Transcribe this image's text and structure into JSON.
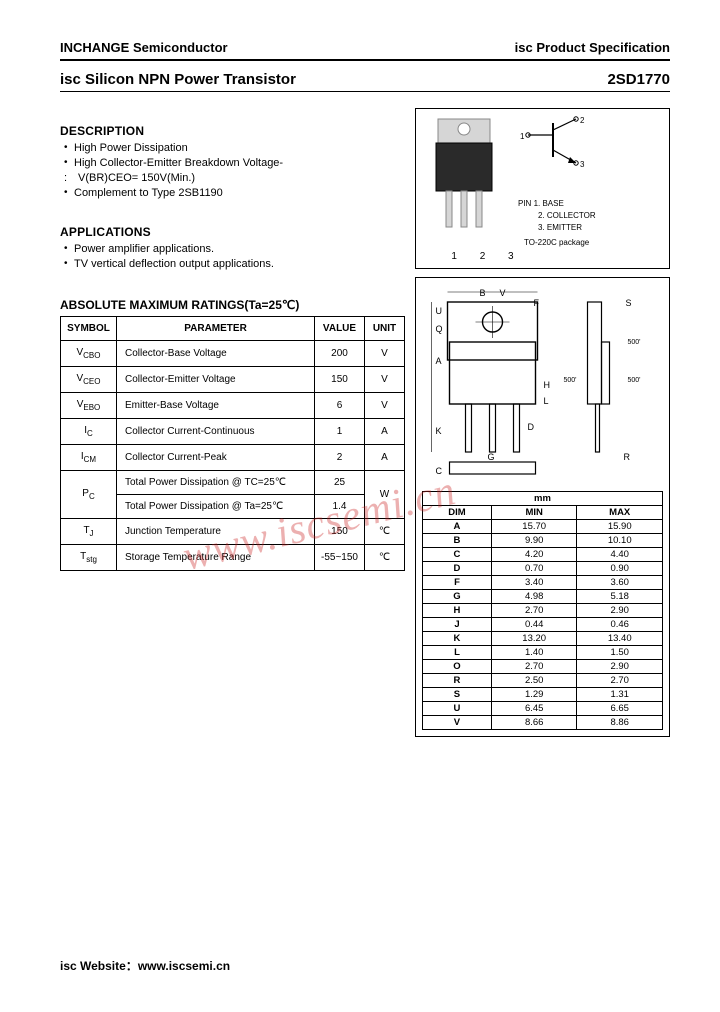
{
  "header": {
    "company": "INCHANGE Semiconductor",
    "spec": "isc Product Specification",
    "product_title": "isc Silicon NPN Power Transistor",
    "part_number": "2SD1770"
  },
  "description": {
    "heading": "DESCRIPTION",
    "items": [
      "High Power Dissipation",
      "High Collector-Emitter Breakdown Voltage-"
    ],
    "sub_item": "V(BR)CEO= 150V(Min.)",
    "complement": "Complement to Type 2SB1190"
  },
  "applications": {
    "heading": "APPLICATIONS",
    "items": [
      "Power amplifier applications.",
      "TV vertical deflection output applications."
    ]
  },
  "ratings": {
    "heading": "ABSOLUTE MAXIMUM RATINGS(Ta=25℃)",
    "columns": [
      "SYMBOL",
      "PARAMETER",
      "VALUE",
      "UNIT"
    ],
    "rows": [
      {
        "sym": "V",
        "sub": "CBO",
        "param": "Collector-Base Voltage",
        "value": "200",
        "unit": "V"
      },
      {
        "sym": "V",
        "sub": "CEO",
        "param": "Collector-Emitter Voltage",
        "value": "150",
        "unit": "V"
      },
      {
        "sym": "V",
        "sub": "EBO",
        "param": "Emitter-Base Voltage",
        "value": "6",
        "unit": "V"
      },
      {
        "sym": "I",
        "sub": "C",
        "param": "Collector Current-Continuous",
        "value": "1",
        "unit": "A"
      },
      {
        "sym": "I",
        "sub": "CM",
        "param": "Collector Current-Peak",
        "value": "2",
        "unit": "A"
      }
    ],
    "pd_rows": [
      {
        "param": "Total Power Dissipation\n@ TC=25℃",
        "value": "25"
      },
      {
        "param": "Total Power Dissipation\n@ Ta=25℃",
        "value": "1.4"
      }
    ],
    "pd_sym": "PC",
    "pd_unit": "W",
    "tj": {
      "sym": "TJ",
      "param": "Junction Temperature",
      "value": "150",
      "unit": "℃"
    },
    "tstg": {
      "sym": "Tstg",
      "param": "Storage Temperature Range",
      "value": "-55~150",
      "unit": "℃"
    }
  },
  "package": {
    "pin_head": "PIN",
    "pins": [
      "1. BASE",
      "2. COLLECTOR",
      "3. EMITTER"
    ],
    "pkg": "TO-220C package",
    "pin_row": "1  2  3"
  },
  "dimensions": {
    "unit_label": "mm",
    "columns": [
      "DIM",
      "MIN",
      "MAX"
    ],
    "rows": [
      [
        "A",
        "15.70",
        "15.90"
      ],
      [
        "B",
        "9.90",
        "10.10"
      ],
      [
        "C",
        "4.20",
        "4.40"
      ],
      [
        "D",
        "0.70",
        "0.90"
      ],
      [
        "F",
        "3.40",
        "3.60"
      ],
      [
        "G",
        "4.98",
        "5.18"
      ],
      [
        "H",
        "2.70",
        "2.90"
      ],
      [
        "J",
        "0.44",
        "0.46"
      ],
      [
        "K",
        "13.20",
        "13.40"
      ],
      [
        "L",
        "1.40",
        "1.50"
      ],
      [
        "O",
        "2.70",
        "2.90"
      ],
      [
        "R",
        "2.50",
        "2.70"
      ],
      [
        "S",
        "1.29",
        "1.31"
      ],
      [
        "U",
        "6.45",
        "6.65"
      ],
      [
        "V",
        "8.66",
        "8.86"
      ]
    ]
  },
  "watermark": "www.iscsemi.cn",
  "footer": {
    "label": "isc Website：",
    "url": "www.iscsemi.cn"
  },
  "drawing": {
    "labels": [
      "B",
      "V",
      "F",
      "S",
      "U",
      "Q",
      "A",
      "H",
      "L",
      "K",
      "D",
      "G",
      "R",
      "C"
    ],
    "angle_labels": [
      "500'",
      "500'",
      "500'"
    ]
  }
}
